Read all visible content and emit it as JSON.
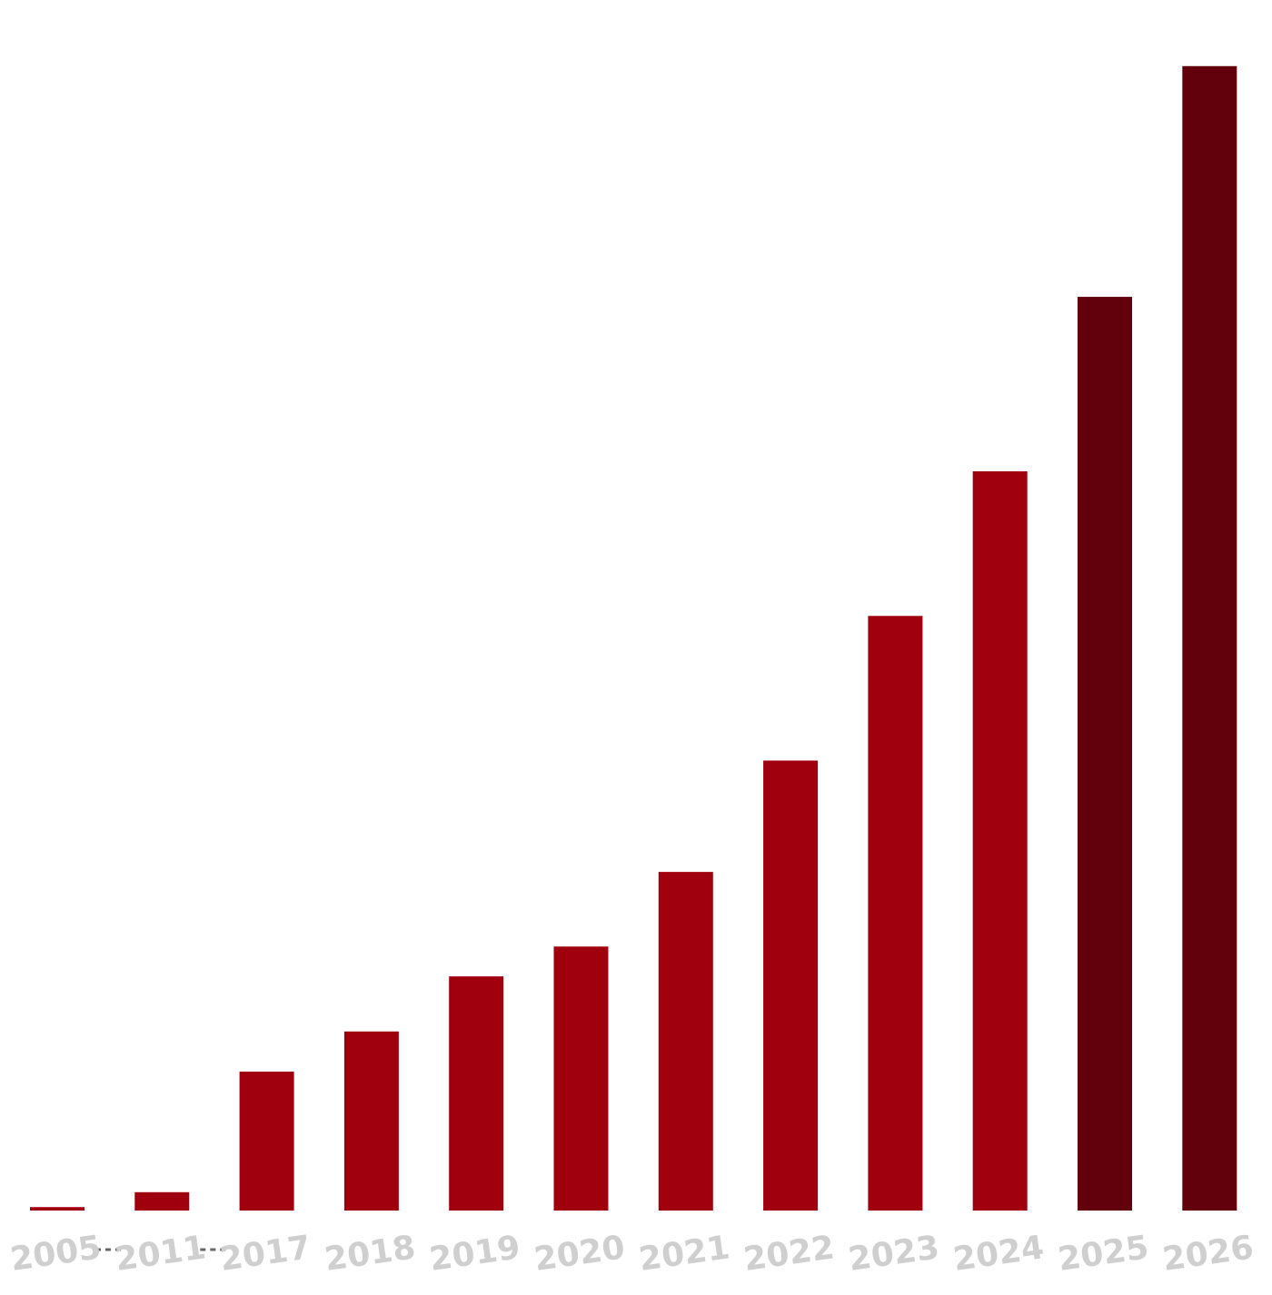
{
  "chart_data": {
    "type": "bar",
    "categories": [
      "2005",
      "2011",
      "2017",
      "2018",
      "2019",
      "2020",
      "2021",
      "2022",
      "2023",
      "2024",
      "2025",
      "2026"
    ],
    "values": [
      0.3,
      1.6,
      12.1,
      15.6,
      20.4,
      23.0,
      29.5,
      39.2,
      51.8,
      64.4,
      79.6,
      99.7
    ],
    "projected": [
      false,
      false,
      false,
      false,
      false,
      false,
      false,
      false,
      false,
      false,
      true,
      true
    ],
    "ylim": [
      0,
      100
    ],
    "title": "",
    "xlabel": "",
    "ylabel": "",
    "grid": false,
    "legend": "none",
    "axis_breaks_after": [
      "2005",
      "2011"
    ],
    "colors": {
      "actual": "#a0000e",
      "projected": "#62000c",
      "tick_label": "#cfcfcf",
      "break_mark": "#666666"
    }
  }
}
